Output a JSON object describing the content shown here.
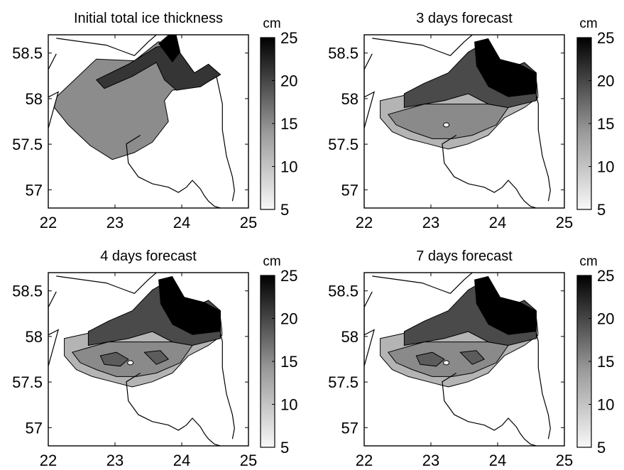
{
  "chart_data": [
    {
      "type": "heatmap",
      "title": "Initial total ice thickness",
      "colorbar_label": "cm",
      "colorbar_ticks": [
        "25",
        "20",
        "15",
        "10",
        "5"
      ],
      "colorbar_range": [
        5,
        25
      ],
      "colormap": [
        "#f8f8f8",
        "#000000"
      ],
      "x_ticks": [
        "22",
        "23",
        "24",
        "25"
      ],
      "y_ticks": [
        "58.5",
        "58",
        "57.5",
        "57"
      ],
      "xlim": [
        22,
        25
      ],
      "ylim": [
        56.8,
        58.7
      ],
      "grid": false
    },
    {
      "type": "heatmap",
      "title": "3 days forecast",
      "colorbar_label": "cm",
      "colorbar_ticks": [
        "25",
        "20",
        "15",
        "10",
        "5"
      ],
      "colorbar_range": [
        5,
        25
      ],
      "colormap": [
        "#f8f8f8",
        "#000000"
      ],
      "x_ticks": [
        "22",
        "23",
        "24",
        "25"
      ],
      "y_ticks": [
        "58.5",
        "58",
        "57.5",
        "57"
      ],
      "xlim": [
        22,
        25
      ],
      "ylim": [
        56.8,
        58.7
      ],
      "grid": false
    },
    {
      "type": "heatmap",
      "title": "4 days forecast",
      "colorbar_label": "cm",
      "colorbar_ticks": [
        "25",
        "20",
        "15",
        "10",
        "5"
      ],
      "colorbar_range": [
        5,
        25
      ],
      "colormap": [
        "#f8f8f8",
        "#000000"
      ],
      "x_ticks": [
        "22",
        "23",
        "24",
        "25"
      ],
      "y_ticks": [
        "58.5",
        "58",
        "57.5",
        "57"
      ],
      "xlim": [
        22,
        25
      ],
      "ylim": [
        56.8,
        58.7
      ],
      "grid": false
    },
    {
      "type": "heatmap",
      "title": "7 days forecast",
      "colorbar_label": "cm",
      "colorbar_ticks": [
        "25",
        "20",
        "15",
        "10",
        "5"
      ],
      "colorbar_range": [
        5,
        25
      ],
      "colormap": [
        "#f8f8f8",
        "#000000"
      ],
      "x_ticks": [
        "22",
        "23",
        "24",
        "25"
      ],
      "y_ticks": [
        "58.5",
        "58",
        "57.5",
        "57"
      ],
      "xlim": [
        22,
        25
      ],
      "ylim": [
        56.8,
        58.7
      ],
      "grid": false
    }
  ]
}
